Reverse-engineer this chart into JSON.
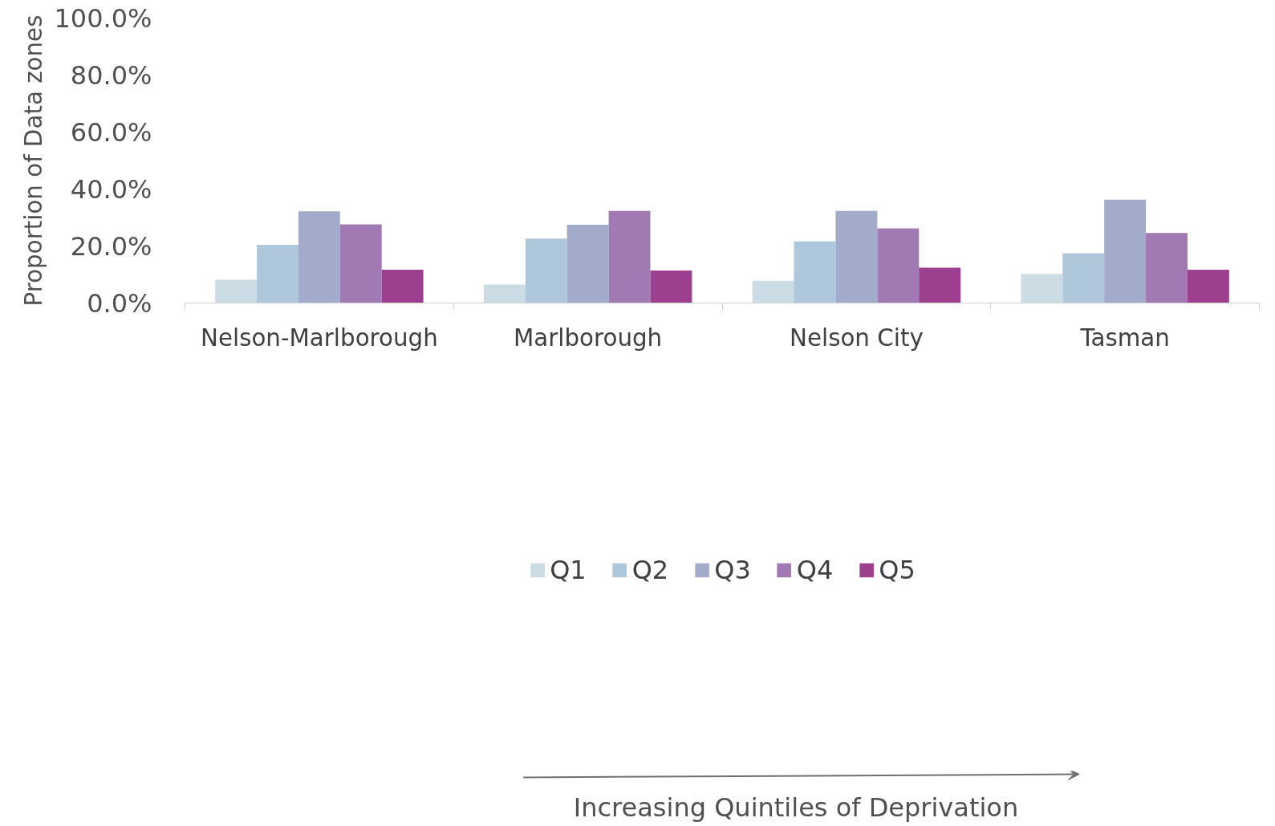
{
  "chart_data": {
    "type": "bar",
    "ylabel": "Proportion of Data zones",
    "categories": [
      "Nelson-Marlborough",
      "Marlborough",
      "Nelson City",
      "Tasman"
    ],
    "series": [
      {
        "name": "Q1",
        "color": "#ccdce4",
        "values": [
          8.2,
          6.5,
          7.8,
          10.2
        ]
      },
      {
        "name": "Q2",
        "color": "#afc7da",
        "values": [
          20.4,
          22.6,
          21.6,
          17.5
        ]
      },
      {
        "name": "Q3",
        "color": "#a2abc9",
        "values": [
          32.2,
          27.5,
          32.3,
          36.3
        ]
      },
      {
        "name": "Q4",
        "color": "#a17ab3",
        "values": [
          27.6,
          32.3,
          26.2,
          24.6
        ]
      },
      {
        "name": "Q5",
        "color": "#9b3f8e",
        "values": [
          11.7,
          11.4,
          12.4,
          11.7
        ]
      }
    ],
    "ylim": [
      0,
      100
    ],
    "yticks": [
      {
        "value": 0,
        "label": "0.0%"
      },
      {
        "value": 20,
        "label": "20.0%"
      },
      {
        "value": 40,
        "label": "40.0%"
      },
      {
        "value": 60,
        "label": "60.0%"
      },
      {
        "value": 80,
        "label": "80.0%"
      },
      {
        "value": 100,
        "label": "100.0%"
      }
    ],
    "grid": false,
    "legend": "bottom",
    "annotations": [
      "Increasing Quintiles of  Deprivation"
    ]
  }
}
